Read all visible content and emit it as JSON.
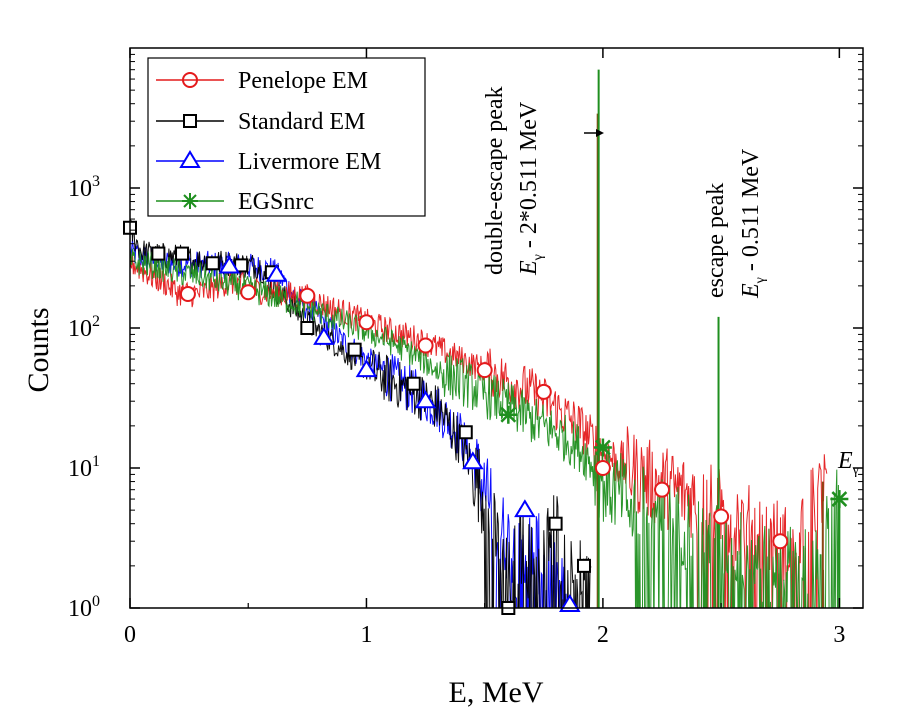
{
  "chart_data": {
    "type": "line",
    "xlabel": "E, MeV",
    "ylabel": "Counts",
    "xlim": [
      0,
      3.1
    ],
    "ylim": [
      1,
      10000
    ],
    "yscale": "log",
    "x_ticks": [
      0,
      1,
      2,
      3
    ],
    "x_tick_labels": [
      "0",
      "1",
      "2",
      "3"
    ],
    "y_ticks": [
      1,
      10,
      100,
      1000
    ],
    "y_tick_labels": [
      {
        "base": "10",
        "exp": "0"
      },
      {
        "base": "10",
        "exp": "1"
      },
      {
        "base": "10",
        "exp": "2"
      },
      {
        "base": "10",
        "exp": "3"
      }
    ],
    "legend_position": "top-left",
    "series": [
      {
        "name": "Penelope EM",
        "color": "#e41a1c",
        "marker": "circle",
        "x": [
          0,
          0.05,
          0.1,
          0.15,
          0.2,
          0.25,
          0.3,
          0.35,
          0.4,
          0.45,
          0.5,
          0.55,
          0.6,
          0.65,
          0.7,
          0.75,
          0.8,
          0.9,
          1.0,
          1.1,
          1.2,
          1.3,
          1.4,
          1.5,
          1.6,
          1.7,
          1.8,
          1.9,
          2.0,
          2.1,
          2.2,
          2.3,
          2.4,
          2.5,
          2.6,
          2.7,
          2.8,
          2.95
        ],
        "y": [
          300,
          260,
          230,
          210,
          180,
          175,
          178,
          190,
          210,
          210,
          195,
          185,
          180,
          175,
          170,
          165,
          150,
          130,
          110,
          95,
          85,
          72,
          60,
          50,
          42,
          35,
          27,
          20,
          13,
          10,
          8,
          7,
          6,
          5,
          4,
          3.2,
          3,
          8
        ],
        "marker_x": [
          0.245,
          0.5,
          0.75,
          1.0,
          1.25,
          1.5,
          1.75,
          2.0,
          2.25,
          2.5,
          2.75
        ],
        "marker_y": [
          175,
          180,
          170,
          110,
          75,
          50,
          35,
          10,
          7,
          4.5,
          3
        ]
      },
      {
        "name": "Standard EM",
        "color": "#000000",
        "marker": "square",
        "x": [
          0,
          0.05,
          0.1,
          0.2,
          0.3,
          0.4,
          0.5,
          0.55,
          0.6,
          0.65,
          0.7,
          0.75,
          0.8,
          0.85,
          0.9,
          1.0,
          1.1,
          1.2,
          1.3,
          1.4,
          1.45,
          1.5,
          1.55,
          1.6,
          1.65,
          1.7,
          1.75,
          1.8,
          1.85,
          1.9,
          1.95
        ],
        "y": [
          500,
          350,
          330,
          320,
          300,
          290,
          280,
          275,
          200,
          165,
          135,
          110,
          95,
          82,
          70,
          52,
          42,
          35,
          27,
          15,
          10,
          6,
          3,
          1.5,
          3,
          2,
          3,
          4,
          1.5,
          2,
          1
        ],
        "marker_x": [
          0,
          0.12,
          0.22,
          0.35,
          0.47,
          0.6,
          0.75,
          0.95,
          1.2,
          1.42,
          1.6,
          1.8,
          1.92
        ],
        "marker_y": [
          520,
          340,
          340,
          290,
          280,
          250,
          100,
          70,
          40,
          18,
          1,
          4,
          2
        ]
      },
      {
        "name": "Livermore EM",
        "color": "#0000ff",
        "marker": "triangle",
        "x": [
          0,
          0.05,
          0.1,
          0.2,
          0.3,
          0.4,
          0.5,
          0.6,
          0.65,
          0.7,
          0.8,
          0.9,
          1.0,
          1.1,
          1.2,
          1.3,
          1.4,
          1.45,
          1.5,
          1.55,
          1.6,
          1.65,
          1.7,
          1.75,
          1.8,
          1.85
        ],
        "y": [
          350,
          320,
          300,
          290,
          285,
          280,
          275,
          260,
          215,
          165,
          120,
          80,
          60,
          45,
          35,
          27,
          17,
          11,
          7,
          4,
          3,
          2,
          3,
          2,
          1.5,
          1
        ],
        "marker_x": [
          0.42,
          0.62,
          0.82,
          1.0,
          1.25,
          1.45,
          1.67,
          1.86
        ],
        "marker_y": [
          275,
          240,
          85,
          50,
          30,
          11,
          5,
          1.05
        ]
      },
      {
        "name": "EGSnrc",
        "color": "#1f8f1f",
        "marker": "asterisk",
        "x": [
          0,
          0.1,
          0.2,
          0.3,
          0.4,
          0.5,
          0.6,
          0.7,
          0.8,
          0.9,
          1.0,
          1.1,
          1.2,
          1.3,
          1.4,
          1.5,
          1.6,
          1.7,
          1.8,
          1.9,
          1.95,
          2.0,
          2.1,
          2.2,
          2.3,
          2.4,
          2.5,
          2.6,
          2.7,
          2.8,
          2.9,
          3.0
        ],
        "y": [
          300,
          280,
          250,
          235,
          210,
          190,
          170,
          150,
          130,
          110,
          95,
          80,
          65,
          50,
          42,
          34,
          28,
          22,
          18,
          14,
          11,
          8,
          6,
          5,
          4,
          3.5,
          3,
          2.5,
          2,
          2,
          2,
          6
        ],
        "marker_x": [
          1.6,
          2.0,
          3.0
        ],
        "marker_y": [
          24,
          14,
          6
        ]
      }
    ],
    "spikes": [
      {
        "x": 1.978,
        "y": 3400,
        "color": "#8b4513"
      },
      {
        "x": 1.982,
        "y": 7000,
        "color": "#1f8f1f"
      },
      {
        "x": 2.489,
        "y": 120,
        "color": "#1f8f1f"
      },
      {
        "x": 2.93,
        "y": 8,
        "color": "#8b4513"
      },
      {
        "x": 3.0,
        "y": 6,
        "color": "#1f8f1f"
      }
    ],
    "annotations": {
      "double_escape_title": "double-escape peak",
      "double_escape_formula_main": "E",
      "double_escape_formula_sub": "γ",
      "double_escape_formula_rest": " - 2*0.511 MeV",
      "escape_title": "escape peak",
      "escape_formula_main": "E",
      "escape_formula_sub": "γ",
      "escape_formula_rest": " - 0.511 MeV",
      "egamma_main": "E",
      "egamma_sub": "γ"
    }
  }
}
